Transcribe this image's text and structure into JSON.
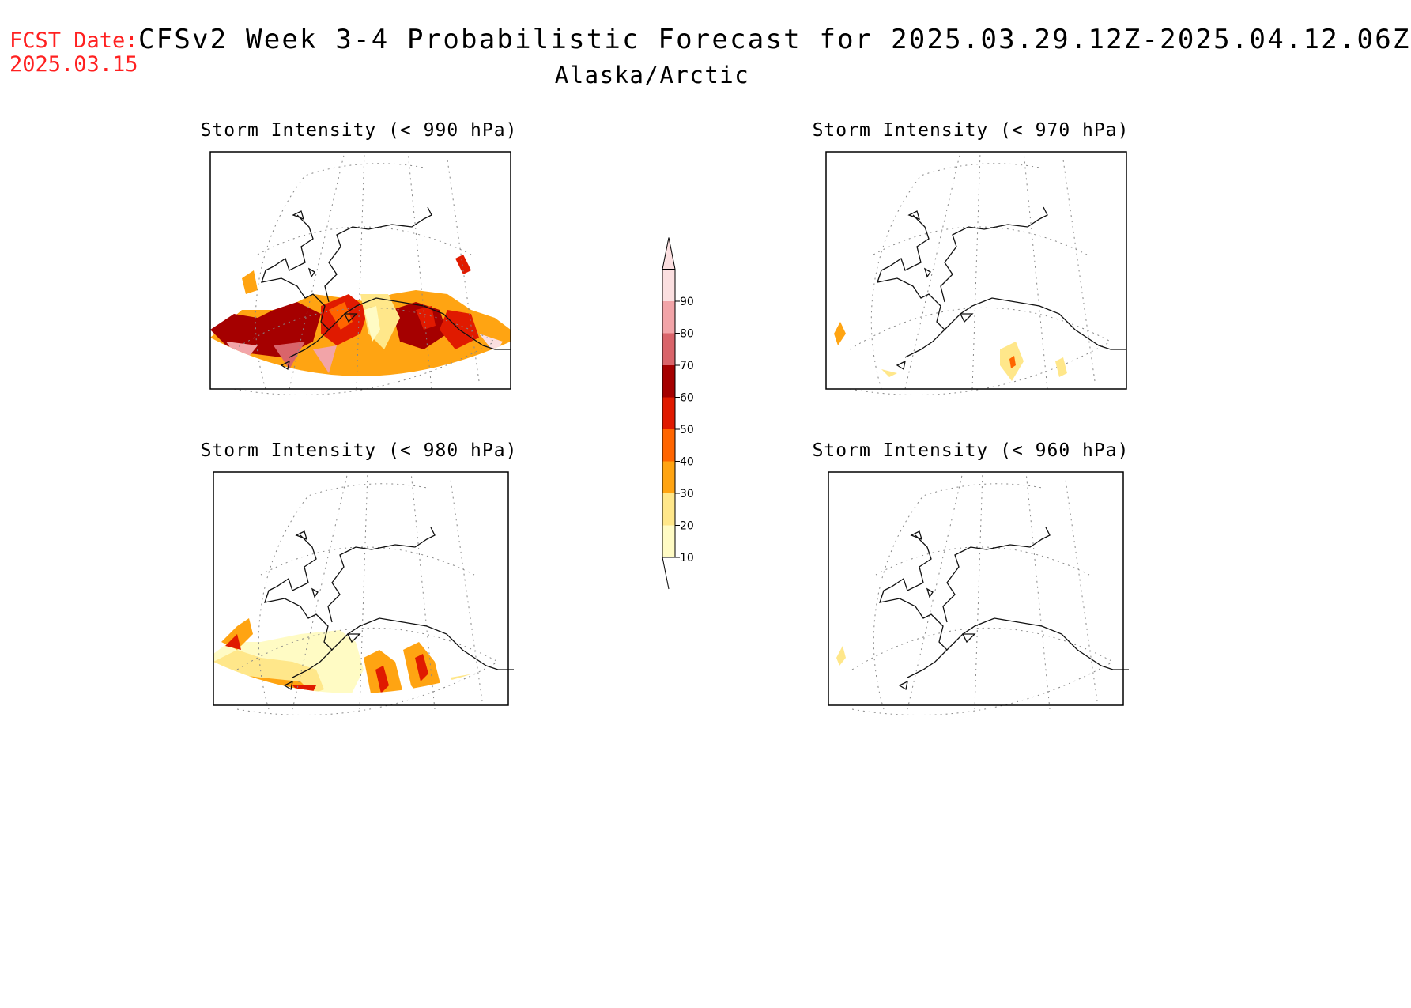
{
  "header": {
    "fcst_label": "FCST Date:",
    "fcst_date": "2025.03.15",
    "title": "CFSv2 Week 3-4 Probabilistic Forecast for 2025.03.29.12Z-2025.04.12.06Z",
    "subtitle": "Alaska/Arctic"
  },
  "panels": [
    {
      "title": "Storm Intensity (< 990 hPa)",
      "coverage": "high"
    },
    {
      "title": "Storm Intensity (< 970 hPa)",
      "coverage": "low"
    },
    {
      "title": "Storm Intensity (< 980 hPa)",
      "coverage": "medium"
    },
    {
      "title": "Storm Intensity (< 960 hPa)",
      "coverage": "minimal"
    }
  ],
  "colorbar": {
    "levels": [
      "10",
      "20",
      "30",
      "40",
      "50",
      "60",
      "70",
      "80",
      "90"
    ],
    "colors": [
      "#fffbc4",
      "#ffe78a",
      "#ffa412",
      "#ff6500",
      "#e01a00",
      "#a50000",
      "#d9646a",
      "#f2a4a8",
      "#fbdfe0"
    ]
  }
}
